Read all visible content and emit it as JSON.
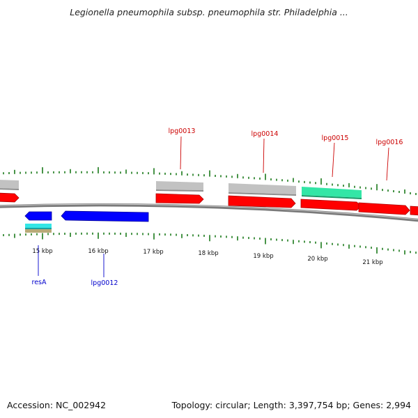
{
  "header": {
    "title": "Legionella pneumophila subsp. pneumophila str. Philadelphia ..."
  },
  "footer": {
    "accession": "Accession: NC_002942",
    "stats": "Topology: circular; Length: 3,397,754 bp; Genes: 2,994"
  },
  "colors": {
    "backbone": "#7a7a7a",
    "tick": "#1a7a1a",
    "forward_gene": "#ff0000",
    "reverse_gene": "#0000ff",
    "forward_label": "#cc0000",
    "reverse_label": "#0000cc",
    "gray_feature": "#bdbdbd",
    "teal_feature": "#33e6a6",
    "cyan_feature": "#33e6e6",
    "tan_feature": "#b8aa78"
  },
  "axis": {
    "tick_labels": [
      "15 kbp",
      "16 kbp",
      "17 kbp",
      "18 kbp",
      "19 kbp",
      "20 kbp",
      "21 kbp"
    ]
  },
  "genes": {
    "forward": [
      "lpg0013",
      "lpg0014",
      "lpg0015",
      "lpg0016"
    ],
    "reverse": [
      "resA",
      "lpg0012"
    ]
  }
}
